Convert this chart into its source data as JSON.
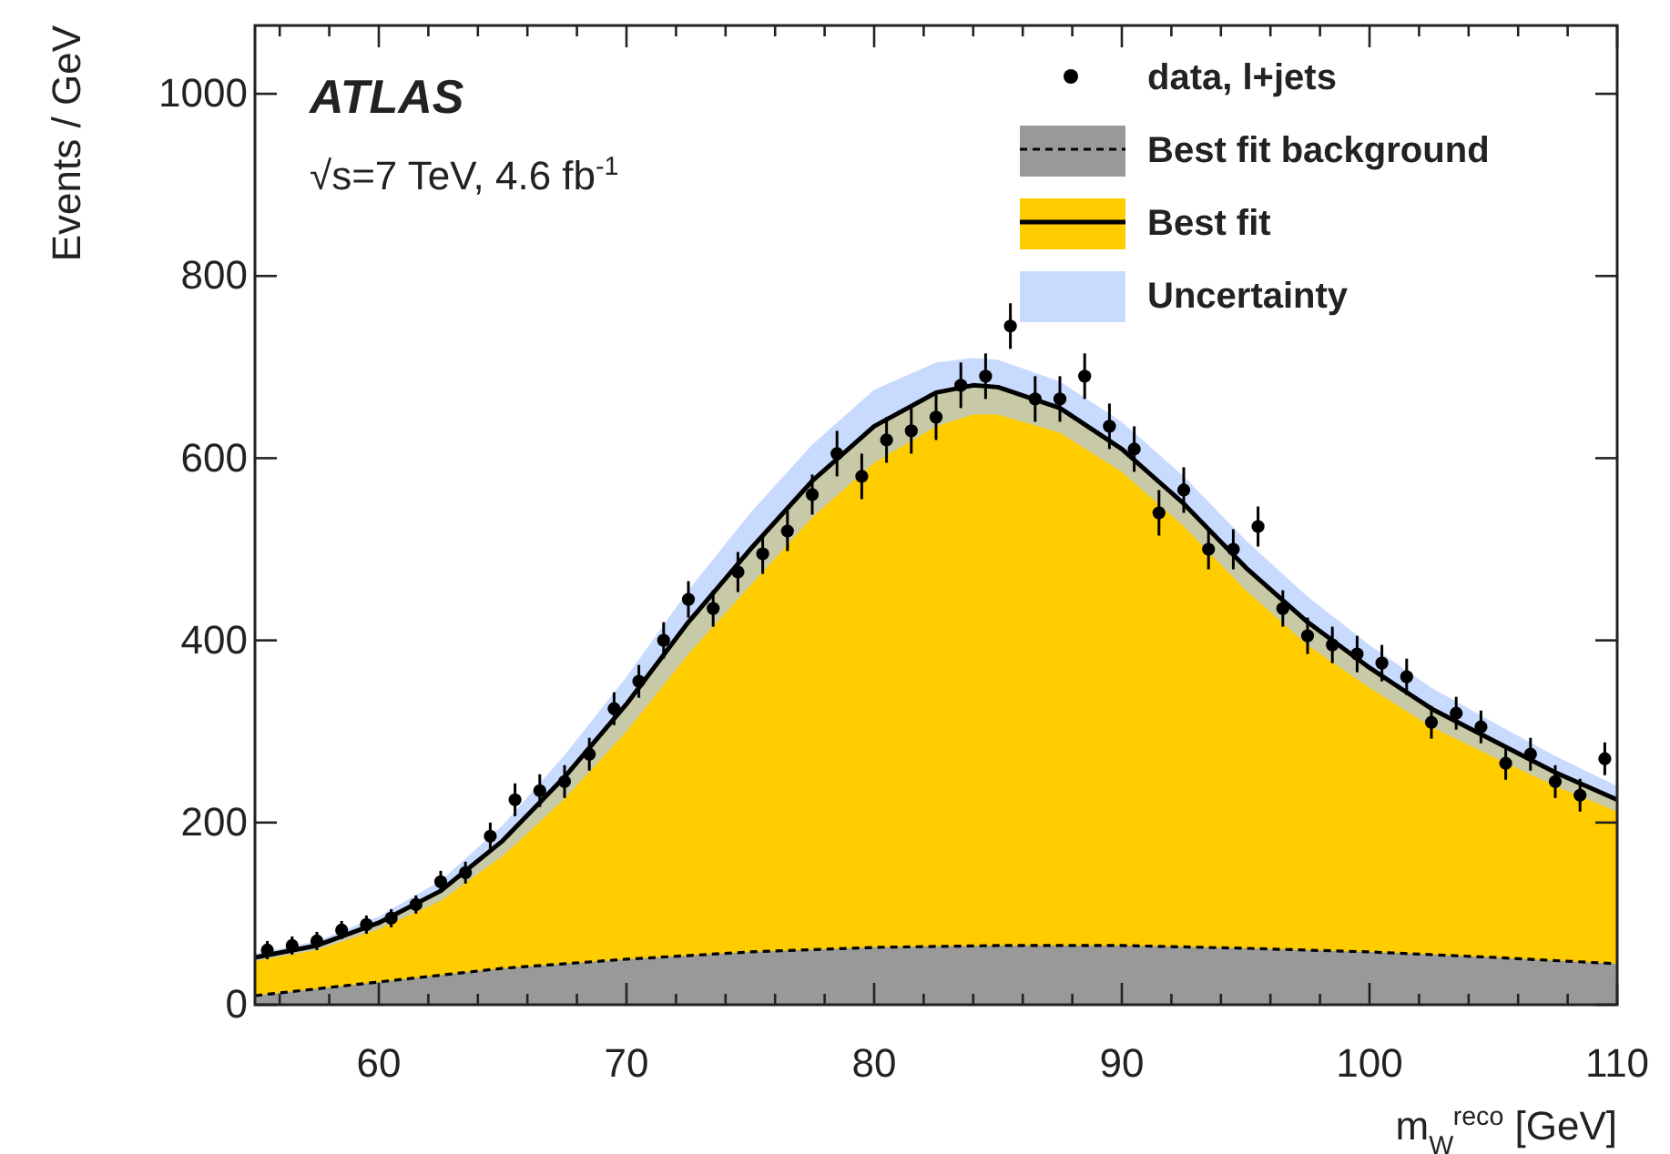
{
  "chart_data": {
    "type": "area",
    "xlabel": "m$_{W}$$^{reco}$ [GeV]",
    "ylabel": "Events / GeV",
    "annotations": [
      "ATLAS",
      "√s=7 TeV, 4.6 fb$^{-1}$"
    ],
    "xlim": [
      55,
      110
    ],
    "ylim": [
      0,
      1075
    ],
    "xticks": [
      {
        "value": 56,
        "label": null
      },
      {
        "value": 58,
        "label": null
      },
      60,
      {
        "value": 62,
        "label": null
      },
      {
        "value": 64,
        "label": null
      },
      {
        "value": 66,
        "label": null
      },
      {
        "value": 68,
        "label": null
      },
      70,
      {
        "value": 72,
        "label": null
      },
      {
        "value": 74,
        "label": null
      },
      {
        "value": 76,
        "label": null
      },
      {
        "value": 78,
        "label": null
      },
      80,
      {
        "value": 82,
        "label": null
      },
      {
        "value": 84,
        "label": null
      },
      {
        "value": 86,
        "label": null
      },
      {
        "value": 88,
        "label": null
      },
      90,
      {
        "value": 92,
        "label": null
      },
      {
        "value": 94,
        "label": null
      },
      {
        "value": 96,
        "label": null
      },
      {
        "value": 98,
        "label": null
      },
      100,
      {
        "value": 102,
        "label": null
      },
      {
        "value": 104,
        "label": null
      },
      {
        "value": 106,
        "label": null
      },
      {
        "value": 108,
        "label": null
      },
      110
    ],
    "yticks": [
      0,
      200,
      400,
      600,
      800,
      1000
    ],
    "legend": "top right",
    "grid": false,
    "series": [
      {
        "name": "data, l+jets",
        "type": "scatter",
        "marker": "circle",
        "color": "#000000",
        "x": [
          55.5,
          56.5,
          57.5,
          58.5,
          59.5,
          60.5,
          61.5,
          62.5,
          63.5,
          64.5,
          65.5,
          66.5,
          67.5,
          68.5,
          69.5,
          70.5,
          71.5,
          72.5,
          73.5,
          74.5,
          75.5,
          76.5,
          77.5,
          78.5,
          79.5,
          80.5,
          81.5,
          82.5,
          83.5,
          84.5,
          85.5,
          86.5,
          87.5,
          88.5,
          89.5,
          90.5,
          91.5,
          92.5,
          93.5,
          94.5,
          95.5,
          96.5,
          97.5,
          98.5,
          99.5,
          100.5,
          101.5,
          102.5,
          103.5,
          104.5,
          105.5,
          106.5,
          107.5,
          108.5,
          109.5
        ],
        "values": [
          60,
          65,
          70,
          82,
          88,
          95,
          110,
          135,
          145,
          185,
          225,
          235,
          245,
          275,
          325,
          355,
          400,
          445,
          435,
          475,
          495,
          520,
          560,
          605,
          580,
          620,
          630,
          645,
          680,
          690,
          745,
          665,
          665,
          690,
          635,
          610,
          540,
          565,
          500,
          500,
          525,
          435,
          405,
          395,
          385,
          375,
          360,
          310,
          320,
          305,
          265,
          275,
          245,
          230,
          270
        ],
        "errors": [
          10,
          10,
          10,
          10,
          10,
          10,
          10,
          12,
          12,
          15,
          18,
          18,
          18,
          18,
          18,
          18,
          20,
          20,
          20,
          22,
          22,
          22,
          22,
          25,
          25,
          25,
          25,
          25,
          25,
          25,
          25,
          25,
          25,
          25,
          25,
          25,
          25,
          25,
          22,
          22,
          22,
          20,
          20,
          20,
          20,
          20,
          20,
          18,
          18,
          18,
          18,
          18,
          18,
          18,
          18
        ]
      },
      {
        "name": "Best fit",
        "type": "area",
        "color": "#ffcc00",
        "x": [
          55,
          57.5,
          60,
          62.5,
          65,
          67.5,
          70,
          72.5,
          75,
          77.5,
          80,
          82.5,
          84,
          85,
          87.5,
          90,
          92.5,
          95,
          97.5,
          100,
          102.5,
          105,
          107.5,
          110
        ],
        "values": [
          52,
          65,
          90,
          125,
          180,
          250,
          330,
          420,
          500,
          575,
          635,
          672,
          680,
          678,
          655,
          610,
          550,
          480,
          420,
          370,
          325,
          290,
          255,
          225
        ],
        "lower": [
          48,
          60,
          83,
          114,
          163,
          226,
          300,
          385,
          460,
          535,
          595,
          635,
          648,
          648,
          628,
          585,
          525,
          455,
          395,
          348,
          305,
          272,
          240,
          212
        ],
        "upper": [
          56,
          70,
          97,
          136,
          197,
          274,
          360,
          455,
          540,
          615,
          675,
          705,
          710,
          708,
          684,
          640,
          580,
          510,
          448,
          395,
          348,
          310,
          273,
          240
        ]
      },
      {
        "name": "Uncertainty",
        "color": "#aac8ff"
      },
      {
        "name": "Best fit background",
        "type": "area",
        "color": "#999999",
        "line_style": "dashed",
        "x": [
          55,
          60,
          65,
          70,
          75,
          80,
          85,
          90,
          95,
          100,
          105,
          110
        ],
        "values": [
          10,
          25,
          40,
          50,
          58,
          63,
          65,
          65,
          62,
          58,
          52,
          45
        ]
      }
    ]
  }
}
